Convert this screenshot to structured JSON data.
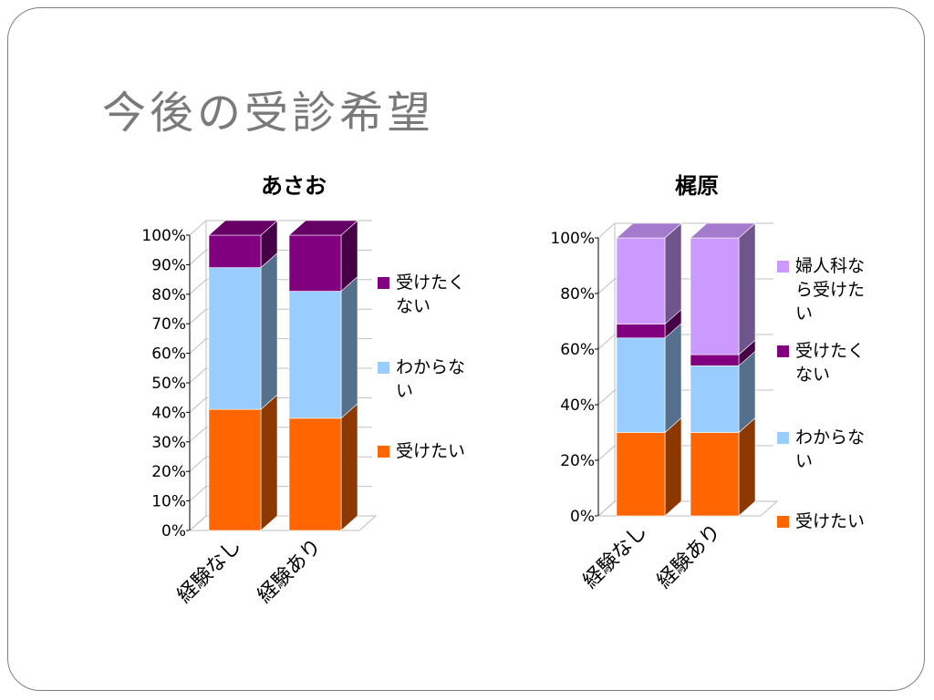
{
  "slide": {
    "title": "今後の受診希望"
  },
  "chart_data": [
    {
      "type": "bar",
      "stacked": true,
      "percent": true,
      "title": "あさお",
      "categories": [
        "経験なし",
        "経験あり"
      ],
      "y_ticks": [
        "0%",
        "10%",
        "20%",
        "30%",
        "40%",
        "50%",
        "60%",
        "70%",
        "80%",
        "90%",
        "100%"
      ],
      "ylim": [
        0,
        100
      ],
      "legend_position": "right",
      "series": [
        {
          "name": "受けたい",
          "color": "#ff6600",
          "values": [
            41,
            38
          ]
        },
        {
          "name": "わからない",
          "color": "#99ccff",
          "values": [
            48,
            43
          ]
        },
        {
          "name": "受けたくない",
          "color": "#800080",
          "values": [
            11,
            19
          ]
        }
      ]
    },
    {
      "type": "bar",
      "stacked": true,
      "percent": true,
      "title": "梶原",
      "categories": [
        "経験なし",
        "経験あり"
      ],
      "y_ticks": [
        "0%",
        "20%",
        "40%",
        "60%",
        "80%",
        "100%"
      ],
      "ylim": [
        0,
        100
      ],
      "legend_position": "right",
      "series": [
        {
          "name": "受けたい",
          "color": "#ff6600",
          "values": [
            30,
            30
          ]
        },
        {
          "name": "わからない",
          "color": "#99ccff",
          "values": [
            34,
            24
          ]
        },
        {
          "name": "受けたくない",
          "color": "#800080",
          "values": [
            5,
            4
          ]
        },
        {
          "name": "婦人科なら受けたい",
          "color": "#cc99ff",
          "values": [
            31,
            42
          ]
        }
      ]
    }
  ],
  "legend_lines": [
    {
      "受けたい": [
        "受けたい"
      ],
      "わからない": [
        "わからな",
        "い"
      ],
      "受けたくない": [
        "受けたく",
        "ない"
      ]
    },
    {
      "受けたい": [
        "受けたい"
      ],
      "わからない": [
        "わからな",
        "い"
      ],
      "受けたくない": [
        "受けたく",
        "ない"
      ],
      "婦人科なら受けたい": [
        "婦人科な",
        "ら受けた",
        "い"
      ]
    }
  ]
}
